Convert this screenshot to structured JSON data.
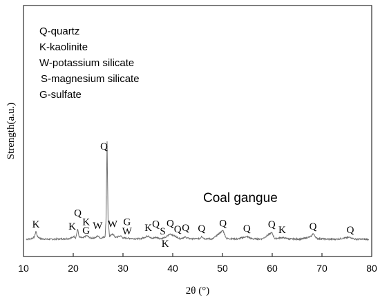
{
  "chart_data": {
    "type": "line",
    "xlabel": "2θ (°)",
    "ylabel": "Strength(a.u.)",
    "xlim": [
      10,
      80
    ],
    "x_ticks": [
      10,
      20,
      30,
      40,
      50,
      60,
      70,
      80
    ],
    "y_ticks_shown": false,
    "grid": false,
    "legend_placement": "top-left",
    "legend_entries": [
      "Q-quartz",
      "K-kaolinite",
      "W-potassium silicate",
      "S-magnesium silicate",
      "G-sulfate"
    ],
    "series": [
      {
        "name": "Coal gangue",
        "points": [
          [
            10.5,
            1.0
          ],
          [
            11.5,
            1.6
          ],
          [
            12.2,
            4.5
          ],
          [
            12.5,
            13.0
          ],
          [
            12.8,
            5.0
          ],
          [
            13.5,
            1.6
          ],
          [
            15.0,
            1.0
          ],
          [
            17.0,
            1.4
          ],
          [
            19.0,
            1.9
          ],
          [
            19.8,
            3.5
          ],
          [
            20.1,
            5.5
          ],
          [
            20.5,
            3.0
          ],
          [
            20.9,
            16.0
          ],
          [
            21.2,
            4.0
          ],
          [
            22.0,
            3.0
          ],
          [
            22.7,
            6.5
          ],
          [
            23.5,
            2.5
          ],
          [
            24.5,
            3.5
          ],
          [
            24.9,
            6.0
          ],
          [
            25.5,
            2.5
          ],
          [
            26.4,
            5.0
          ],
          [
            26.6,
            30.0
          ],
          [
            26.8,
            145.0
          ],
          [
            27.0,
            30.0
          ],
          [
            27.3,
            5.0
          ],
          [
            27.9,
            9.0
          ],
          [
            28.5,
            3.5
          ],
          [
            29.5,
            6.0
          ],
          [
            30.0,
            3.0
          ],
          [
            31.0,
            2.5
          ],
          [
            32.0,
            2.0
          ],
          [
            33.5,
            1.6
          ],
          [
            35.1,
            6.0
          ],
          [
            35.8,
            2.0
          ],
          [
            36.6,
            4.0
          ],
          [
            37.5,
            2.0
          ],
          [
            38.5,
            3.5
          ],
          [
            39.5,
            9.0
          ],
          [
            40.3,
            6.0
          ],
          [
            41.5,
            2.0
          ],
          [
            42.5,
            4.0
          ],
          [
            43.5,
            1.6
          ],
          [
            45.5,
            2.0
          ],
          [
            45.8,
            5.5
          ],
          [
            46.3,
            2.0
          ],
          [
            48.0,
            1.4
          ],
          [
            50.1,
            14.0
          ],
          [
            50.8,
            2.0
          ],
          [
            53.0,
            1.4
          ],
          [
            54.9,
            5.0
          ],
          [
            56.0,
            1.6
          ],
          [
            58.0,
            1.4
          ],
          [
            59.9,
            11.0
          ],
          [
            60.5,
            2.0
          ],
          [
            62.0,
            3.5
          ],
          [
            63.5,
            1.4
          ],
          [
            66.0,
            1.4
          ],
          [
            67.8,
            5.0
          ],
          [
            68.2,
            9.5
          ],
          [
            69.0,
            2.0
          ],
          [
            71.0,
            1.2
          ],
          [
            73.0,
            1.1
          ],
          [
            75.7,
            4.0
          ],
          [
            76.5,
            1.2
          ],
          [
            78.0,
            1.0
          ],
          [
            79.5,
            1.0
          ]
        ]
      }
    ],
    "annotations": [
      {
        "text": "K",
        "x": 12.5,
        "y": 18
      },
      {
        "text": "K",
        "x": 19.8,
        "y": 15
      },
      {
        "text": "Q",
        "x": 20.9,
        "y": 35
      },
      {
        "text": "K",
        "x": 22.6,
        "y": 22
      },
      {
        "text": "G",
        "x": 22.6,
        "y": 9
      },
      {
        "text": "W",
        "x": 24.9,
        "y": 16
      },
      {
        "text": "Q",
        "x": 26.2,
        "y": 133
      },
      {
        "text": "W",
        "x": 27.9,
        "y": 19
      },
      {
        "text": "G",
        "x": 30.8,
        "y": 22
      },
      {
        "text": "W",
        "x": 30.8,
        "y": 8
      },
      {
        "text": "K",
        "x": 35.1,
        "y": 13
      },
      {
        "text": "Q",
        "x": 36.6,
        "y": 19
      },
      {
        "text": "S",
        "x": 38.0,
        "y": 8
      },
      {
        "text": "K",
        "x": 38.5,
        "y": -10
      },
      {
        "text": "Q",
        "x": 39.5,
        "y": 20
      },
      {
        "text": "Q",
        "x": 41.0,
        "y": 11
      },
      {
        "text": "Q",
        "x": 42.6,
        "y": 13
      },
      {
        "text": "Q",
        "x": 45.8,
        "y": 12
      },
      {
        "text": "Q",
        "x": 50.1,
        "y": 20
      },
      {
        "text": "Q",
        "x": 54.9,
        "y": 12
      },
      {
        "text": "Q",
        "x": 59.9,
        "y": 18
      },
      {
        "text": "K",
        "x": 62.0,
        "y": 10
      },
      {
        "text": "Q",
        "x": 68.2,
        "y": 15
      },
      {
        "text": "Q",
        "x": 75.7,
        "y": 10
      }
    ]
  }
}
